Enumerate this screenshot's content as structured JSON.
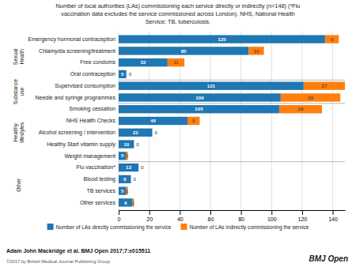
{
  "chart_data": {
    "type": "bar",
    "orientation": "horizontal",
    "stacked": true,
    "title": "Number of local authorities (LAs) commissioning each service directly or indirectly (n=148) (*Flu\nvaccination data excludes the service commissioned across London). NHS, National Health\nService; TB, tuberculosis.",
    "categories": [
      "Emergency hormonal contraception",
      "Chlamydia screening/treatment",
      "Free condoms",
      "Oral contraception",
      "Supervised consumption",
      "Needle and syringe programmes",
      "Smoking cessation",
      "NHS Health Checks",
      "Alcohol screening / intervention",
      "Healthy Start vitamin supply",
      "Weight management",
      "Flu vaccination*",
      "Blood testing",
      "TB services",
      "Other services"
    ],
    "series": [
      {
        "name": "Number of LAs directly commissioning the service",
        "values": [
          135,
          85,
          32,
          5,
          121,
          106,
          105,
          45,
          22,
          10,
          5,
          13,
          8,
          5,
          9
        ]
      },
      {
        "name": "Number of LAs indirectly commissioning the service",
        "values": [
          9,
          10,
          11,
          0,
          27,
          39,
          28,
          8,
          0,
          0,
          1,
          0,
          0,
          1,
          1
        ]
      }
    ],
    "groups": [
      {
        "label": "Sexual\nHealth",
        "range": [
          0,
          3
        ]
      },
      {
        "label": "Substance\nuse",
        "range": [
          4,
          5
        ]
      },
      {
        "label": "Healthy\nlifestyles",
        "range": [
          6,
          10
        ]
      },
      {
        "label": "Other",
        "range": [
          11,
          14
        ]
      }
    ],
    "xlim": [
      0,
      148
    ],
    "xticks": [
      0,
      20,
      40,
      60,
      80,
      100,
      120,
      140
    ],
    "grid": true,
    "legend": "bottom",
    "data_labels": true,
    "annotations": [
      "Adam John Mackridge et al. BMJ Open 2017;7:e015511",
      "©2017 by British Medical Journal Publishing Group",
      "BMJ Open"
    ]
  }
}
